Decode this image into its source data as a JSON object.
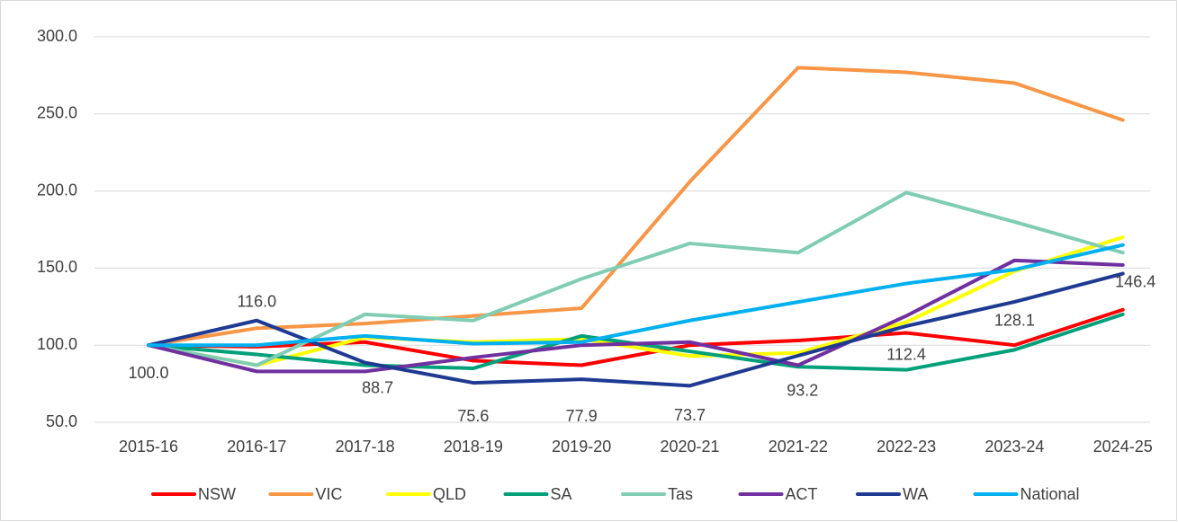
{
  "chart_data": {
    "type": "line",
    "categories": [
      "2015-16",
      "2016-17",
      "2017-18",
      "2018-19",
      "2019-20",
      "2020-21",
      "2021-22",
      "2022-23",
      "2023-24",
      "2024-25"
    ],
    "series": [
      {
        "name": "NSW",
        "color": "#ff0000",
        "values": [
          100,
          99,
          102,
          90,
          87,
          100,
          103,
          108,
          100,
          123
        ]
      },
      {
        "name": "VIC",
        "color": "#f79646",
        "values": [
          100,
          111,
          114,
          119,
          124,
          206,
          280,
          277,
          270,
          246
        ]
      },
      {
        "name": "QLD",
        "color": "#ffff00",
        "values": [
          100,
          87,
          105,
          102,
          104,
          93,
          95,
          115,
          148,
          170
        ]
      },
      {
        "name": "SA",
        "color": "#00a07a",
        "values": [
          100,
          94,
          87,
          85,
          106,
          96,
          86,
          84,
          97,
          120
        ]
      },
      {
        "name": "Tas",
        "color": "#80cdb4",
        "values": [
          100,
          87,
          120,
          116,
          143,
          166,
          160,
          199,
          180,
          160
        ]
      },
      {
        "name": "ACT",
        "color": "#7030a0",
        "values": [
          100,
          83,
          83,
          92,
          100,
          102,
          87,
          119,
          155,
          152
        ]
      },
      {
        "name": "WA",
        "color": "#1f3a93",
        "values": [
          100,
          116,
          88.7,
          75.6,
          77.9,
          73.7,
          93.2,
          112.4,
          128.1,
          146.4
        ],
        "value_labels": [
          "100.0",
          "116.0",
          "88.7",
          "75.6",
          "77.9",
          "73.7",
          "93.2",
          "112.4",
          "128.1",
          "146.4"
        ]
      },
      {
        "name": "National",
        "color": "#00b0f0",
        "values": [
          100,
          100,
          106,
          101,
          102,
          116,
          128,
          140,
          149,
          165
        ]
      }
    ],
    "ylim": [
      50,
      300
    ],
    "yticks": [
      {
        "value": 50,
        "label": "50.0"
      },
      {
        "value": 100,
        "label": "100.0"
      },
      {
        "value": 150,
        "label": "150.0"
      },
      {
        "value": 200,
        "label": "200.0"
      },
      {
        "value": 250,
        "label": "250.0"
      },
      {
        "value": 300,
        "label": "300.0"
      }
    ],
    "grid": true,
    "legend": "bottom"
  }
}
